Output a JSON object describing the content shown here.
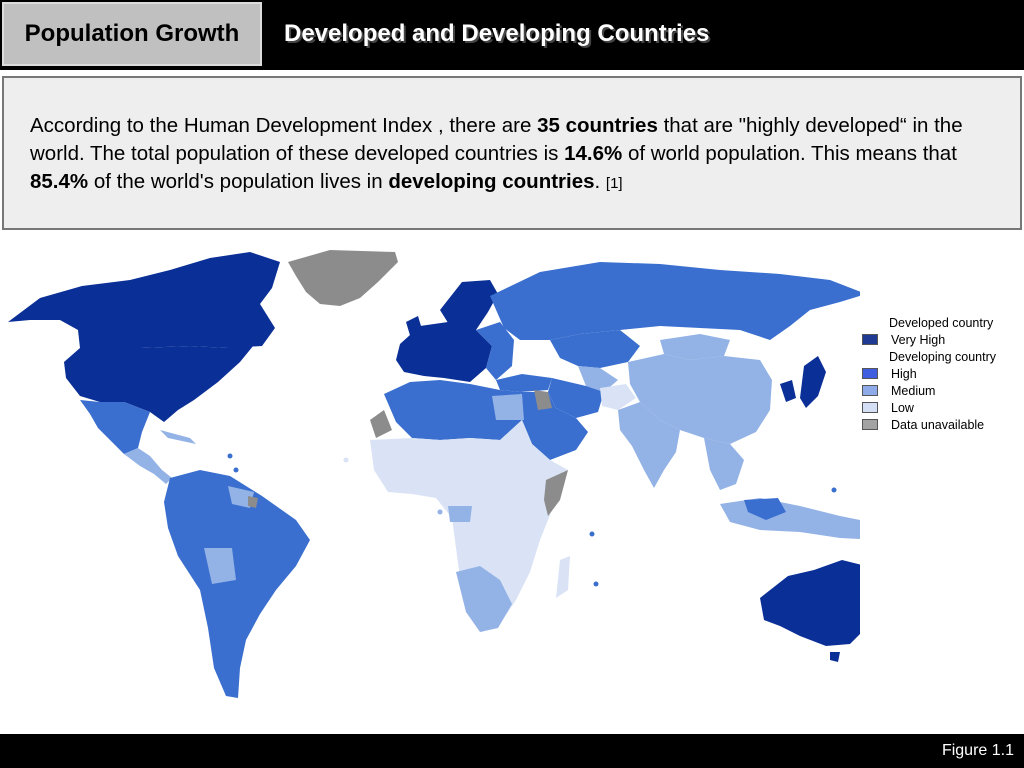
{
  "header": {
    "section_tab": "Population Growth",
    "title": "Developed and Developing Countries"
  },
  "text": {
    "p1": "According to the Human Development Index , there are ",
    "b1": "35 countries",
    "p2": " that are \"highly developed“ in the world. The total population of these developed countries is ",
    "b2": "14.6%",
    "p3": " of world population. This means that ",
    "b3": "85.4%",
    "p4": " of the world's population lives in ",
    "b4": "developing countries",
    "p5": ". ",
    "ref": "[1]"
  },
  "legend": {
    "items": [
      {
        "label": "Developed country",
        "color": null
      },
      {
        "label": "Very High",
        "color": "#1f3a93"
      },
      {
        "label": "Developing country",
        "color": null
      },
      {
        "label": "High",
        "color": "#3f5fe0"
      },
      {
        "label": "Medium",
        "color": "#8faae8"
      },
      {
        "label": "Low",
        "color": "#d4def4"
      },
      {
        "label": "Data unavailable",
        "color": "#a3a3a3"
      }
    ]
  },
  "colors": {
    "very_high": "#0a2f96",
    "high": "#3a6fd0",
    "medium": "#93b2e6",
    "low": "#d9e3f5",
    "na": "#8c8c8c"
  },
  "footer": {
    "figure_label": "Figure 1.1"
  }
}
